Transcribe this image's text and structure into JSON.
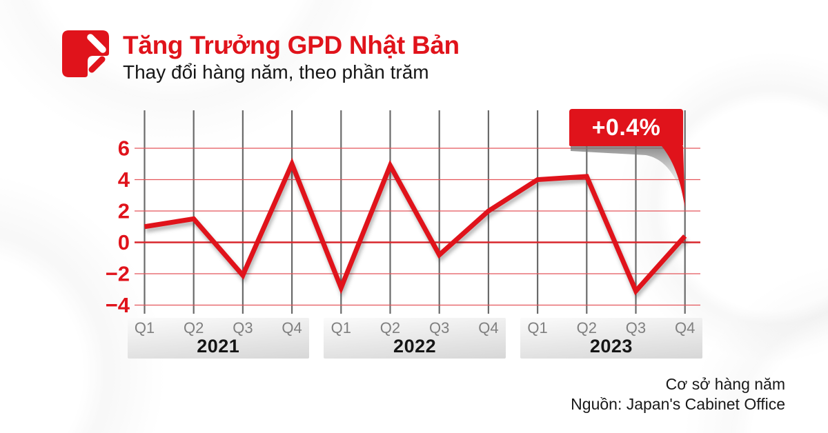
{
  "header": {
    "title": "Tăng Trưởng GPD Nhật Bản",
    "subtitle": "Thay đổi hàng năm, theo phần trăm"
  },
  "footer": {
    "line1": "Cơ sở hàng năm",
    "line2": "Nguồn: Japan's Cabinet Office"
  },
  "logo": {
    "icon": "brand-slash-logo"
  },
  "colors": {
    "brand_red": "#e0131b",
    "grid_red": "#e4555a",
    "zero_line_red": "#d8262c",
    "quarter_line_gray": "#6a6a6a",
    "ytick_red": "#e0131b",
    "quarter_text": "#7f7f7f",
    "year_text": "#151515",
    "band_gradient_top": "#fbfbfb",
    "band_gradient_bottom": "#d7d7d7"
  },
  "chart_data": {
    "type": "line",
    "title": "Tăng Trưởng GPD Nhật Bản",
    "subtitle": "Thay đổi hàng năm, theo phần trăm",
    "unit": "%",
    "years": [
      "2021",
      "2022",
      "2023"
    ],
    "quarter_labels": [
      "Q1",
      "Q2",
      "Q3",
      "Q4"
    ],
    "categories": [
      "2021 Q1",
      "2021 Q2",
      "2021 Q3",
      "2021 Q4",
      "2022 Q1",
      "2022 Q2",
      "2022 Q3",
      "2022 Q4",
      "2023 Q1",
      "2023 Q2",
      "2023 Q3",
      "2023 Q4"
    ],
    "values": [
      1.0,
      1.5,
      -2.1,
      5.0,
      -2.9,
      4.9,
      -0.8,
      2.0,
      4.0,
      4.2,
      -3.1,
      0.4
    ],
    "yticks": [
      6,
      4,
      2,
      0,
      -2,
      -4
    ],
    "ylim": [
      -4.6,
      7.4
    ],
    "grid": true,
    "legend": false,
    "line_color": "#e0131b",
    "annotation": {
      "label": "+0.4%",
      "target": "2023 Q4",
      "value": 0.4
    }
  }
}
